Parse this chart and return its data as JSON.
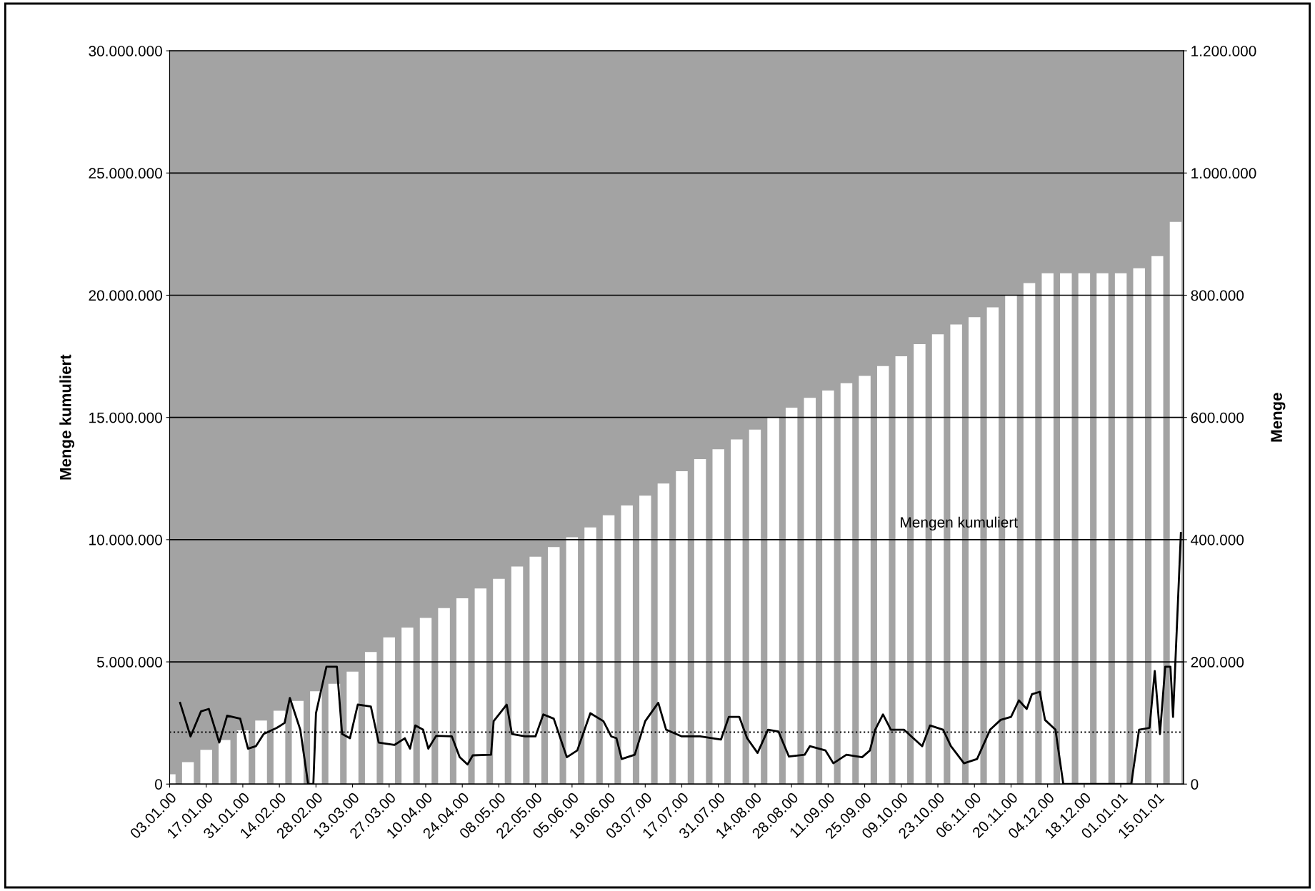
{
  "chart_data": {
    "type": "bar",
    "ylabel": "Menge kumuliert",
    "y2label": "Menge",
    "annotations": [
      "Mengen kumuliert"
    ],
    "series": [
      {
        "color": "#ffffff",
        "x": [
          "2000-01-03",
          "2000-01-10",
          "2000-01-17",
          "2000-01-24",
          "2000-01-31",
          "2000-02-07",
          "2000-02-14",
          "2000-02-21",
          "2000-02-28",
          "2000-03-06",
          "2000-03-13",
          "2000-03-20",
          "2000-03-27",
          "2000-04-03",
          "2000-04-10",
          "2000-04-17",
          "2000-04-24",
          "2000-05-01",
          "2000-05-08",
          "2000-05-15",
          "2000-05-22",
          "2000-05-29",
          "2000-06-05",
          "2000-06-12",
          "2000-06-19",
          "2000-06-26",
          "2000-07-03",
          "2000-07-10",
          "2000-07-17",
          "2000-07-24",
          "2000-07-31",
          "2000-08-07",
          "2000-08-14",
          "2000-08-21",
          "2000-08-28",
          "2000-09-04",
          "2000-09-11",
          "2000-09-18",
          "2000-09-25",
          "2000-10-02",
          "2000-10-09",
          "2000-10-16",
          "2000-10-23",
          "2000-10-30",
          "2000-11-06",
          "2000-11-13",
          "2000-11-20",
          "2000-11-27",
          "2000-12-04",
          "2000-12-11",
          "2000-12-18",
          "2000-12-25",
          "2001-01-01",
          "2001-01-08",
          "2001-01-15",
          "2001-01-22"
        ],
        "values": [
          400000,
          900000,
          1400000,
          1800000,
          2200000,
          2600000,
          3000000,
          3400000,
          3800000,
          4100000,
          4600000,
          5400000,
          6000000,
          6400000,
          6800000,
          7200000,
          7600000,
          8000000,
          8400000,
          8900000,
          9300000,
          9700000,
          10100000,
          10500000,
          11000000,
          11400000,
          11800000,
          12300000,
          12800000,
          13300000,
          13700000,
          14100000,
          14500000,
          15000000,
          15400000,
          15800000,
          16100000,
          16400000,
          16700000,
          17100000,
          17500000,
          18000000,
          18400000,
          18800000,
          19100000,
          19500000,
          20000000,
          20500000,
          20900000,
          20900000,
          20900000,
          20900000,
          20900000,
          21100000,
          21600000,
          23000000
        ]
      },
      {
        "type": "line",
        "axis": "y2",
        "color": "#000000",
        "x": [
          "2000-01-07",
          "2000-01-11",
          "2000-01-15",
          "2000-01-18",
          "2000-01-22",
          "2000-01-25",
          "2000-01-30",
          "2000-02-02",
          "2000-02-05",
          "2000-02-08",
          "2000-02-13",
          "2000-02-16",
          "2000-02-18",
          "2000-02-22",
          "2000-02-25",
          "2000-02-27",
          "2000-02-28",
          "2000-03-03",
          "2000-03-07",
          "2000-03-09",
          "2000-03-12",
          "2000-03-15",
          "2000-03-20",
          "2000-03-23",
          "2000-03-29",
          "2000-04-02",
          "2000-04-04",
          "2000-04-06",
          "2000-04-09",
          "2000-04-11",
          "2000-04-14",
          "2000-04-20",
          "2000-04-23",
          "2000-04-26",
          "2000-04-28",
          "2000-05-05",
          "2000-05-06",
          "2000-05-11",
          "2000-05-13",
          "2000-05-18",
          "2000-05-22",
          "2000-05-25",
          "2000-05-29",
          "2000-06-03",
          "2000-06-07",
          "2000-06-12",
          "2000-06-17",
          "2000-06-20",
          "2000-06-22",
          "2000-06-24",
          "2000-06-29",
          "2000-07-03",
          "2000-07-08",
          "2000-07-11",
          "2000-07-17",
          "2000-07-24",
          "2000-08-01",
          "2000-08-04",
          "2000-08-08",
          "2000-08-11",
          "2000-08-15",
          "2000-08-19",
          "2000-08-23",
          "2000-08-27",
          "2000-09-02",
          "2000-09-04",
          "2000-09-10",
          "2000-09-13",
          "2000-09-18",
          "2000-09-24",
          "2000-09-27",
          "2000-09-29",
          "2000-10-02",
          "2000-10-05",
          "2000-10-10",
          "2000-10-17",
          "2000-10-20",
          "2000-10-25",
          "2000-10-28",
          "2000-11-02",
          "2000-11-07",
          "2000-11-12",
          "2000-11-16",
          "2000-11-20",
          "2000-11-23",
          "2000-11-26",
          "2000-11-28",
          "2000-12-01",
          "2000-12-03",
          "2000-12-07",
          "2000-12-10",
          "2001-01-05",
          "2001-01-08",
          "2001-01-12",
          "2001-01-14",
          "2001-01-16",
          "2001-01-18",
          "2001-01-20",
          "2001-01-21",
          "2001-01-24"
        ],
        "values": [
          133000,
          78000,
          119000,
          123000,
          68000,
          112000,
          107000,
          58000,
          62000,
          82000,
          92000,
          100000,
          141000,
          89000,
          0,
          0,
          116000,
          192000,
          192000,
          82000,
          75000,
          130000,
          127000,
          68000,
          64000,
          75000,
          58000,
          96000,
          89000,
          58000,
          79000,
          78000,
          44000,
          32000,
          47000,
          48000,
          103000,
          130000,
          82000,
          78000,
          78000,
          114000,
          107000,
          44000,
          55000,
          116000,
          103000,
          78000,
          75000,
          41000,
          48000,
          103000,
          133000,
          89000,
          78000,
          78000,
          73000,
          110000,
          110000,
          75000,
          51000,
          89000,
          86000,
          45000,
          48000,
          62000,
          55000,
          34000,
          48000,
          44000,
          55000,
          89000,
          114000,
          89000,
          89000,
          62000,
          96000,
          89000,
          62000,
          34000,
          41000,
          89000,
          105000,
          110000,
          137000,
          123000,
          147000,
          151000,
          105000,
          89000,
          0,
          0,
          89000,
          92000,
          185000,
          82000,
          192000,
          192000,
          110000,
          411000
        ]
      }
    ],
    "ref_lines": [
      {
        "axis": "y2",
        "value": 85000,
        "line_style": "dotted",
        "color": "#000000"
      }
    ],
    "xlim": [
      "2000-01-03",
      "2001-01-25"
    ],
    "xticks": [
      {
        "value": "2000-01-03",
        "label": "03.01.00"
      },
      {
        "value": "2000-01-17",
        "label": "17.01.00"
      },
      {
        "value": "2000-01-31",
        "label": "31.01.00"
      },
      {
        "value": "2000-02-14",
        "label": "14.02.00"
      },
      {
        "value": "2000-02-28",
        "label": "28.02.00"
      },
      {
        "value": "2000-03-13",
        "label": "13.03.00"
      },
      {
        "value": "2000-03-27",
        "label": "27.03.00"
      },
      {
        "value": "2000-04-10",
        "label": "10.04.00"
      },
      {
        "value": "2000-04-24",
        "label": "24.04.00"
      },
      {
        "value": "2000-05-08",
        "label": "08.05.00"
      },
      {
        "value": "2000-05-22",
        "label": "22.05.00"
      },
      {
        "value": "2000-06-05",
        "label": "05.06.00"
      },
      {
        "value": "2000-06-19",
        "label": "19.06.00"
      },
      {
        "value": "2000-07-03",
        "label": "03.07.00"
      },
      {
        "value": "2000-07-17",
        "label": "17.07.00"
      },
      {
        "value": "2000-07-31",
        "label": "31.07.00"
      },
      {
        "value": "2000-08-14",
        "label": "14.08.00"
      },
      {
        "value": "2000-08-28",
        "label": "28.08.00"
      },
      {
        "value": "2000-09-11",
        "label": "11.09.00"
      },
      {
        "value": "2000-09-25",
        "label": "25.09.00"
      },
      {
        "value": "2000-10-09",
        "label": "09.10.00"
      },
      {
        "value": "2000-10-23",
        "label": "23.10.00"
      },
      {
        "value": "2000-11-06",
        "label": "06.11.00"
      },
      {
        "value": "2000-11-20",
        "label": "20.11.00"
      },
      {
        "value": "2000-12-04",
        "label": "04.12.00"
      },
      {
        "value": "2000-12-18",
        "label": "18.12.00"
      },
      {
        "value": "2001-01-01",
        "label": "01.01.01"
      },
      {
        "value": "2001-01-15",
        "label": "15.01.01"
      }
    ],
    "ylim": [
      0,
      30000000
    ],
    "yticks": [
      0,
      {
        "value": 5000000,
        "label": "5.000.000"
      },
      {
        "value": 10000000,
        "label": "10.000.000"
      },
      {
        "value": 15000000,
        "label": "15.000.000"
      },
      {
        "value": 20000000,
        "label": "20.000.000"
      },
      {
        "value": 25000000,
        "label": "25.000.000"
      },
      {
        "value": 30000000,
        "label": "30.000.000"
      }
    ],
    "y2lim": [
      0,
      1200000
    ],
    "y2ticks": [
      0,
      {
        "value": 200000,
        "label": "200.000"
      },
      {
        "value": 400000,
        "label": "400.000"
      },
      {
        "value": 600000,
        "label": "600.000"
      },
      {
        "value": 800000,
        "label": "800.000"
      },
      {
        "value": 1000000,
        "label": "1.000.000"
      },
      {
        "value": 1200000,
        "label": "1.200.000"
      }
    ],
    "grid": "y",
    "legend": false
  }
}
